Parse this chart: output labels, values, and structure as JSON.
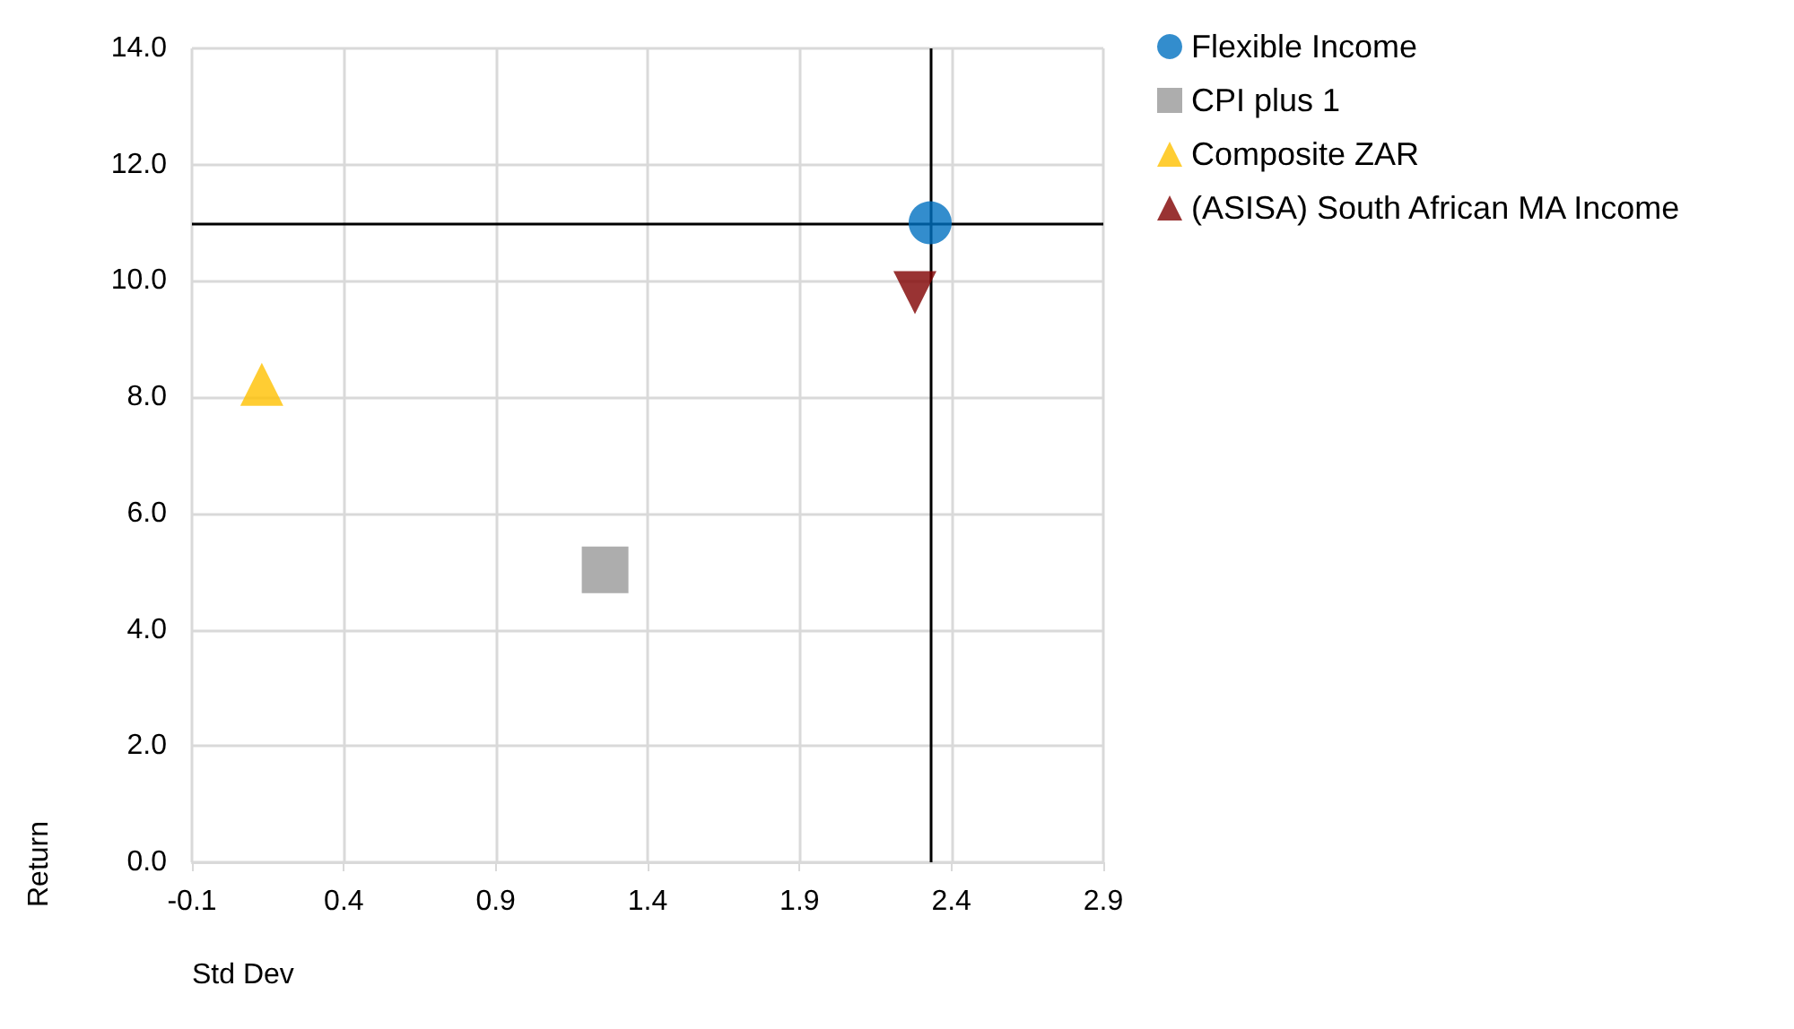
{
  "chart_data": {
    "type": "scatter",
    "xlabel": "Std Dev",
    "ylabel": "Return",
    "series": [
      {
        "name": "Flexible Income",
        "color": "#0070c0",
        "marker": "circle",
        "x": [
          2.33
        ],
        "values": [
          11.0
        ]
      },
      {
        "name": "CPI plus 1",
        "color": "#999999",
        "marker": "square",
        "x": [
          1.26
        ],
        "values": [
          5.03
        ]
      },
      {
        "name": "Composite ZAR",
        "color": "#ffc000",
        "marker": "triangle",
        "x": [
          0.13
        ],
        "values": [
          8.22
        ]
      },
      {
        "name": "(ASISA) South African MA Income",
        "color": "#7f0000",
        "marker": "triangle_down",
        "x": [
          2.28
        ],
        "values": [
          9.8
        ]
      }
    ],
    "xlim": [
      -0.1,
      2.9
    ],
    "xticks": [
      -0.1,
      0.4,
      0.9,
      1.4,
      1.9,
      2.4,
      2.9
    ],
    "ylim": [
      0,
      14
    ],
    "yticks": [
      {
        "value": 0,
        "label": "0.0"
      },
      {
        "value": 2,
        "label": "2.0"
      },
      {
        "value": 4,
        "label": "4.0"
      },
      {
        "value": 6,
        "label": "6.0"
      },
      {
        "value": 8,
        "label": "8.0"
      },
      {
        "value": 10,
        "label": "10.0"
      },
      {
        "value": 12,
        "label": "12.0"
      },
      {
        "value": 14,
        "label": "14.0"
      }
    ],
    "ref_lines": [
      {
        "axis": "x",
        "value": 2.33,
        "color": "#000000"
      },
      {
        "axis": "y",
        "value": 11.0,
        "color": "#000000"
      }
    ],
    "grid": true,
    "legend": "top right"
  }
}
